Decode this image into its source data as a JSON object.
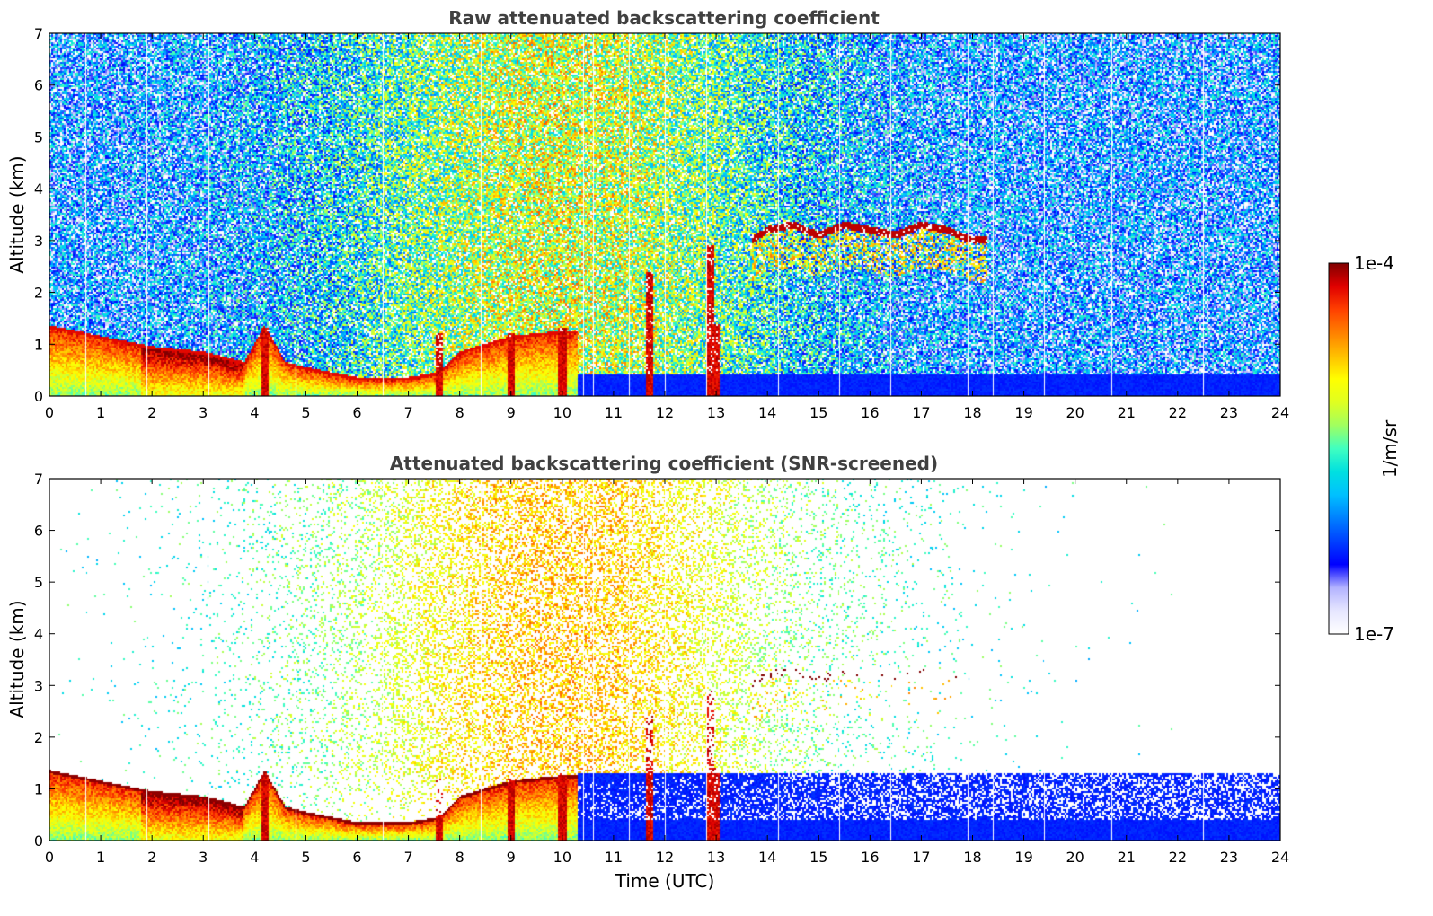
{
  "chart_data": [
    {
      "type": "heatmap",
      "panel": "top",
      "title": "Raw attenuated backscattering coefficient",
      "xlabel": "",
      "ylabel": "Altitude (km)",
      "xlim": [
        0,
        24
      ],
      "ylim": [
        0,
        7
      ],
      "xticks": [
        "0",
        "1",
        "2",
        "3",
        "4",
        "5",
        "6",
        "7",
        "8",
        "9",
        "10",
        "11",
        "12",
        "13",
        "14",
        "15",
        "16",
        "17",
        "18",
        "19",
        "20",
        "21",
        "22",
        "23",
        "24"
      ],
      "yticks": [
        "0",
        "1",
        "2",
        "3",
        "4",
        "5",
        "6",
        "7"
      ],
      "features": {
        "boundary_layer_top_km": [
          [
            0,
            1.3
          ],
          [
            1,
            1.1
          ],
          [
            2,
            0.9
          ],
          [
            3,
            0.8
          ],
          [
            3.8,
            0.6
          ],
          [
            4.2,
            1.3
          ],
          [
            4.6,
            0.6
          ],
          [
            5,
            0.5
          ],
          [
            6,
            0.3
          ],
          [
            7,
            0.3
          ],
          [
            7.6,
            0.4
          ],
          [
            8,
            0.8
          ],
          [
            9,
            1.1
          ],
          [
            10,
            1.2
          ]
        ],
        "cloud_layer_km": [
          [
            13.7,
            3.0
          ],
          [
            14,
            3.2
          ],
          [
            14.5,
            3.3
          ],
          [
            15,
            3.1
          ],
          [
            15.5,
            3.3
          ],
          [
            16,
            3.2
          ],
          [
            16.5,
            3.1
          ],
          [
            17,
            3.3
          ],
          [
            17.5,
            3.2
          ],
          [
            18,
            3.0
          ],
          [
            18.3,
            3.0
          ]
        ],
        "high_noise_period_utc": [
          7,
          13
        ]
      }
    },
    {
      "type": "heatmap",
      "panel": "bottom",
      "title": "Attenuated backscattering coefficient (SNR-screened)",
      "xlabel": "Time (UTC)",
      "ylabel": "Altitude (km)",
      "xlim": [
        0,
        24
      ],
      "ylim": [
        0,
        7
      ],
      "xticks": [
        "0",
        "1",
        "2",
        "3",
        "4",
        "5",
        "6",
        "7",
        "8",
        "9",
        "10",
        "11",
        "12",
        "13",
        "14",
        "15",
        "16",
        "17",
        "18",
        "19",
        "20",
        "21",
        "22",
        "23",
        "24"
      ],
      "yticks": [
        "0",
        "1",
        "2",
        "3",
        "4",
        "5",
        "6",
        "7"
      ]
    }
  ],
  "colorbar": {
    "label": "1/m/sr",
    "max_label": "1e-4",
    "min_label": "1e-7",
    "colormap": [
      "#ffffff",
      "#e6e6ff",
      "#b3b3ff",
      "#0000ff",
      "#0040ff",
      "#0080ff",
      "#00c0ff",
      "#00e0e0",
      "#40ffc0",
      "#a0ff60",
      "#e0ff20",
      "#ffff00",
      "#ffc000",
      "#ff8000",
      "#ff4000",
      "#e00000",
      "#800000"
    ]
  }
}
